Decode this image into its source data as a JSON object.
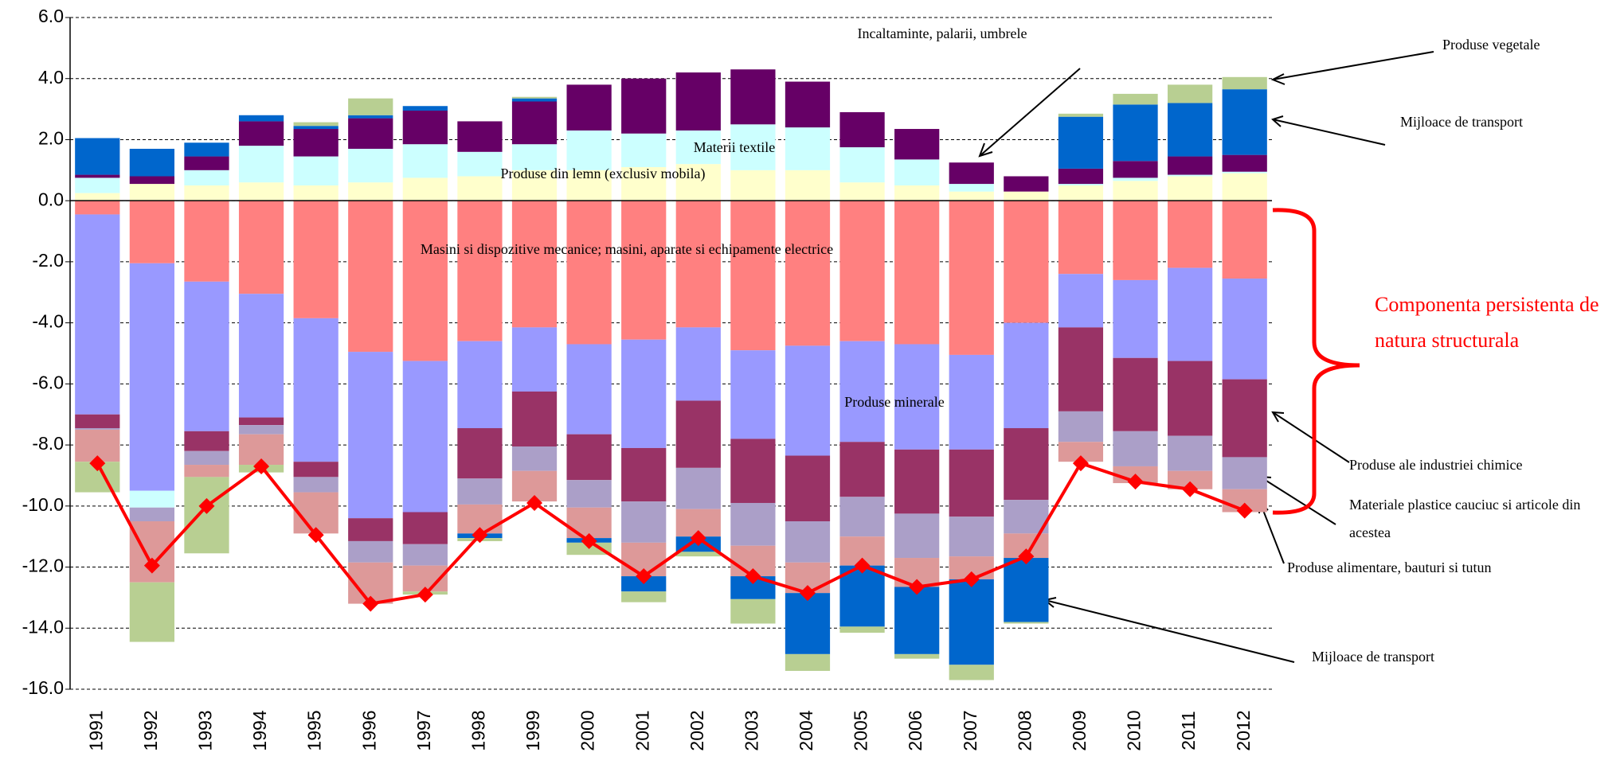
{
  "chart_data": {
    "type": "bar",
    "categories": [
      "1991",
      "1992",
      "1993",
      "1994",
      "1995",
      "1996",
      "1997",
      "1998",
      "1999",
      "2000",
      "2001",
      "2002",
      "2003",
      "2004",
      "2005",
      "2006",
      "2007",
      "2008",
      "2009",
      "2010",
      "2011",
      "2012"
    ],
    "ylim": [
      -16,
      6
    ],
    "yticks": [
      {
        "value": 6,
        "label": "6.0"
      },
      {
        "value": 4,
        "label": "4.0"
      },
      {
        "value": 2,
        "label": "2.0"
      },
      {
        "value": 0,
        "label": "0.0"
      },
      {
        "value": -2,
        "label": "-2.0"
      },
      {
        "value": -4,
        "label": "-4.0"
      },
      {
        "value": -6,
        "label": "-6.0"
      },
      {
        "value": -8,
        "label": "-8.0"
      },
      {
        "value": -10,
        "label": "-10.0"
      },
      {
        "value": -12,
        "label": "-12.0"
      },
      {
        "value": -14,
        "label": "-14.0"
      },
      {
        "value": -16,
        "label": "-16.0"
      }
    ],
    "grid": true,
    "series": [
      {
        "color": "#ff8080",
        "values": [
          -0.45,
          -2.05,
          -2.65,
          -3.05,
          -3.85,
          -4.95,
          -5.25,
          -4.6,
          -4.15,
          -4.7,
          -4.55,
          -4.15,
          -4.9,
          -4.75,
          -4.6,
          -4.7,
          -5.05,
          -4.0,
          -2.4,
          -2.6,
          -2.2,
          -2.55
        ]
      },
      {
        "color": "#9999ff",
        "values": [
          -6.55,
          -7.45,
          -4.9,
          -4.05,
          -4.7,
          -5.45,
          -4.95,
          -2.85,
          -2.1,
          -2.95,
          -3.55,
          -2.4,
          -2.9,
          -3.6,
          -3.3,
          -3.45,
          -3.1,
          -3.45,
          -1.75,
          -2.55,
          -3.05,
          -3.3
        ]
      },
      {
        "color": "#ffffcc",
        "values": [
          0.25,
          0.55,
          0.5,
          0.6,
          0.5,
          0.6,
          0.75,
          0.8,
          1.0,
          1.0,
          1.1,
          1.2,
          1.0,
          1.0,
          0.6,
          0.5,
          0.3,
          0.3,
          0.5,
          0.65,
          0.8,
          0.9
        ]
      },
      {
        "color": "#ccffff",
        "values": [
          0.5,
          -0.55,
          0.5,
          1.2,
          0.95,
          1.1,
          1.1,
          0.8,
          0.85,
          1.3,
          1.1,
          1.1,
          1.5,
          1.4,
          1.15,
          0.85,
          0.25,
          0,
          0.05,
          0.1,
          0.05,
          0.05
        ]
      },
      {
        "color": "#660066",
        "values": [
          0.1,
          0.25,
          0.45,
          0.8,
          0.9,
          1.0,
          1.1,
          1.0,
          1.4,
          1.5,
          1.8,
          1.9,
          1.8,
          1.5,
          1.15,
          1.0,
          0.7,
          0.5,
          0.5,
          0.55,
          0.6,
          0.55
        ]
      },
      {
        "color": "#993366",
        "values": [
          -0.45,
          0,
          -0.65,
          -0.25,
          -0.5,
          -0.75,
          -1.05,
          -1.65,
          -1.8,
          -1.5,
          -1.75,
          -2.2,
          -2.1,
          -2.15,
          -1.8,
          -2.1,
          -2.2,
          -2.35,
          -2.75,
          -2.4,
          -2.45,
          -2.55
        ]
      },
      {
        "color": "#ab9fc8",
        "values": [
          -0.05,
          -0.45,
          -0.45,
          -0.3,
          -0.5,
          -0.7,
          -0.7,
          -0.85,
          -0.8,
          -0.9,
          -1.35,
          -1.35,
          -1.4,
          -1.35,
          -1.3,
          -1.45,
          -1.3,
          -1.1,
          -1.0,
          -1.15,
          -1.15,
          -1.05
        ]
      },
      {
        "color": "#dd9999",
        "values": [
          -1.05,
          -2.0,
          -0.4,
          -1.0,
          -1.35,
          -1.35,
          -0.85,
          -0.95,
          -1.0,
          -1.0,
          -1.1,
          -0.9,
          -1.0,
          -1.0,
          -0.95,
          -0.95,
          -0.75,
          -0.8,
          -0.65,
          -0.55,
          -0.6,
          -0.75
        ]
      },
      {
        "color": "#0066cc",
        "values": [
          1.2,
          0.9,
          0.45,
          0.2,
          0.1,
          0.1,
          0.15,
          -0.15,
          0.1,
          -0.15,
          -0.5,
          -0.5,
          -0.75,
          -2.0,
          -2.0,
          -2.2,
          -2.8,
          -2.1,
          1.7,
          1.85,
          1.75,
          2.15
        ]
      },
      {
        "color": "#b8cf92",
        "values": [
          -1.0,
          -1.95,
          -2.5,
          -0.25,
          0.12,
          0.55,
          -0.1,
          -0.1,
          0.05,
          -0.4,
          -0.35,
          -0.15,
          -0.8,
          -0.55,
          -0.2,
          -0.15,
          -0.5,
          -0.05,
          0.1,
          0.35,
          0.6,
          0.4
        ]
      }
    ],
    "line": {
      "color": "#ff0000",
      "values": [
        -8.6,
        -11.95,
        -10.0,
        -8.7,
        -10.95,
        -13.2,
        -12.9,
        -10.95,
        -9.9,
        -11.15,
        -12.3,
        -11.05,
        -12.3,
        -12.85,
        -11.95,
        -12.65,
        -12.4,
        -11.65,
        -8.6,
        -9.2,
        -9.45,
        -10.15
      ]
    },
    "annotations": [
      {
        "text": "Incaltaminte, palarii, umbrele"
      },
      {
        "text": "Produse vegetale"
      },
      {
        "text": "Mijloace de transport"
      },
      {
        "text": "Materii textile"
      },
      {
        "text": "Produse din lemn (exclusiv mobila)"
      },
      {
        "text": "Masini si dispozitive mecanice; masini, aparate si echipamente electrice"
      },
      {
        "text": "Produse minerale"
      },
      {
        "text": "Componenta persistenta de"
      },
      {
        "text": "natura structurala"
      },
      {
        "text": "Produse ale industriei chimice"
      },
      {
        "text": "Materiale plastice cauciuc si articole din"
      },
      {
        "text": "acestea"
      },
      {
        "text": "Produse alimentare, bauturi si tutun"
      },
      {
        "text": "Mijloace de transport"
      }
    ]
  }
}
